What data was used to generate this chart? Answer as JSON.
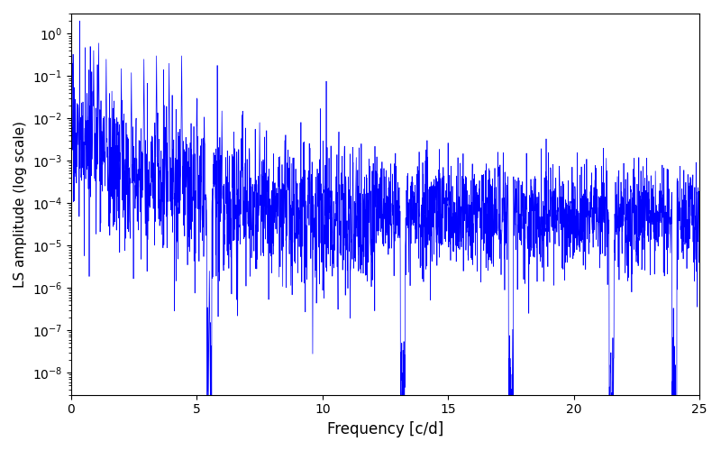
{
  "title": "",
  "xlabel": "Frequency [c/d]",
  "ylabel": "LS amplitude (log scale)",
  "xlim": [
    0,
    25
  ],
  "ylim": [
    3e-09,
    3.0
  ],
  "line_color": "#0000ff",
  "line_width": 0.5,
  "freq_min": 0.0,
  "freq_max": 25.0,
  "n_points": 3000,
  "seed": 17,
  "background_color": "#ffffff",
  "figsize": [
    8.0,
    5.0
  ],
  "dpi": 100
}
